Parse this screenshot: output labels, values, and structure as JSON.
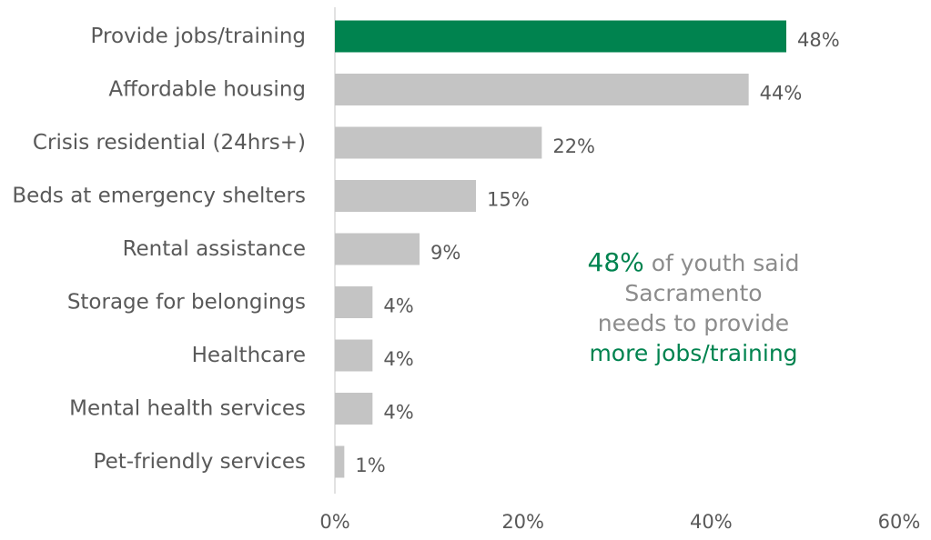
{
  "chart_data": {
    "type": "bar",
    "orientation": "horizontal",
    "categories": [
      "Provide jobs/training",
      "Affordable housing",
      "Crisis residential (24hrs+)",
      "Beds at emergency shelters",
      "Rental assistance",
      "Storage for belongings",
      "Healthcare",
      "Mental health services",
      "Pet-friendly services"
    ],
    "values": [
      48,
      44,
      22,
      15,
      9,
      4,
      4,
      4,
      1
    ],
    "value_labels": [
      "48%",
      "44%",
      "22%",
      "15%",
      "9%",
      "4%",
      "4%",
      "4%",
      "1%"
    ],
    "highlight_index": 0,
    "xlim": [
      0,
      60
    ],
    "ticks": [
      0,
      20,
      40,
      60
    ],
    "tick_labels": [
      "0%",
      "20%",
      "40%",
      "60%"
    ],
    "grid": false,
    "legend": "none",
    "colors": {
      "highlight": "#00834f",
      "default": "#c4c4c4",
      "axis": "#d9d9d9",
      "text": "#595959",
      "callout_text": "#8c8c8c"
    }
  },
  "callout": {
    "pct": "48%",
    "line1_rest": " of youth said",
    "line2": "Sacramento",
    "line3": "needs to provide",
    "line4": "more jobs/training"
  }
}
